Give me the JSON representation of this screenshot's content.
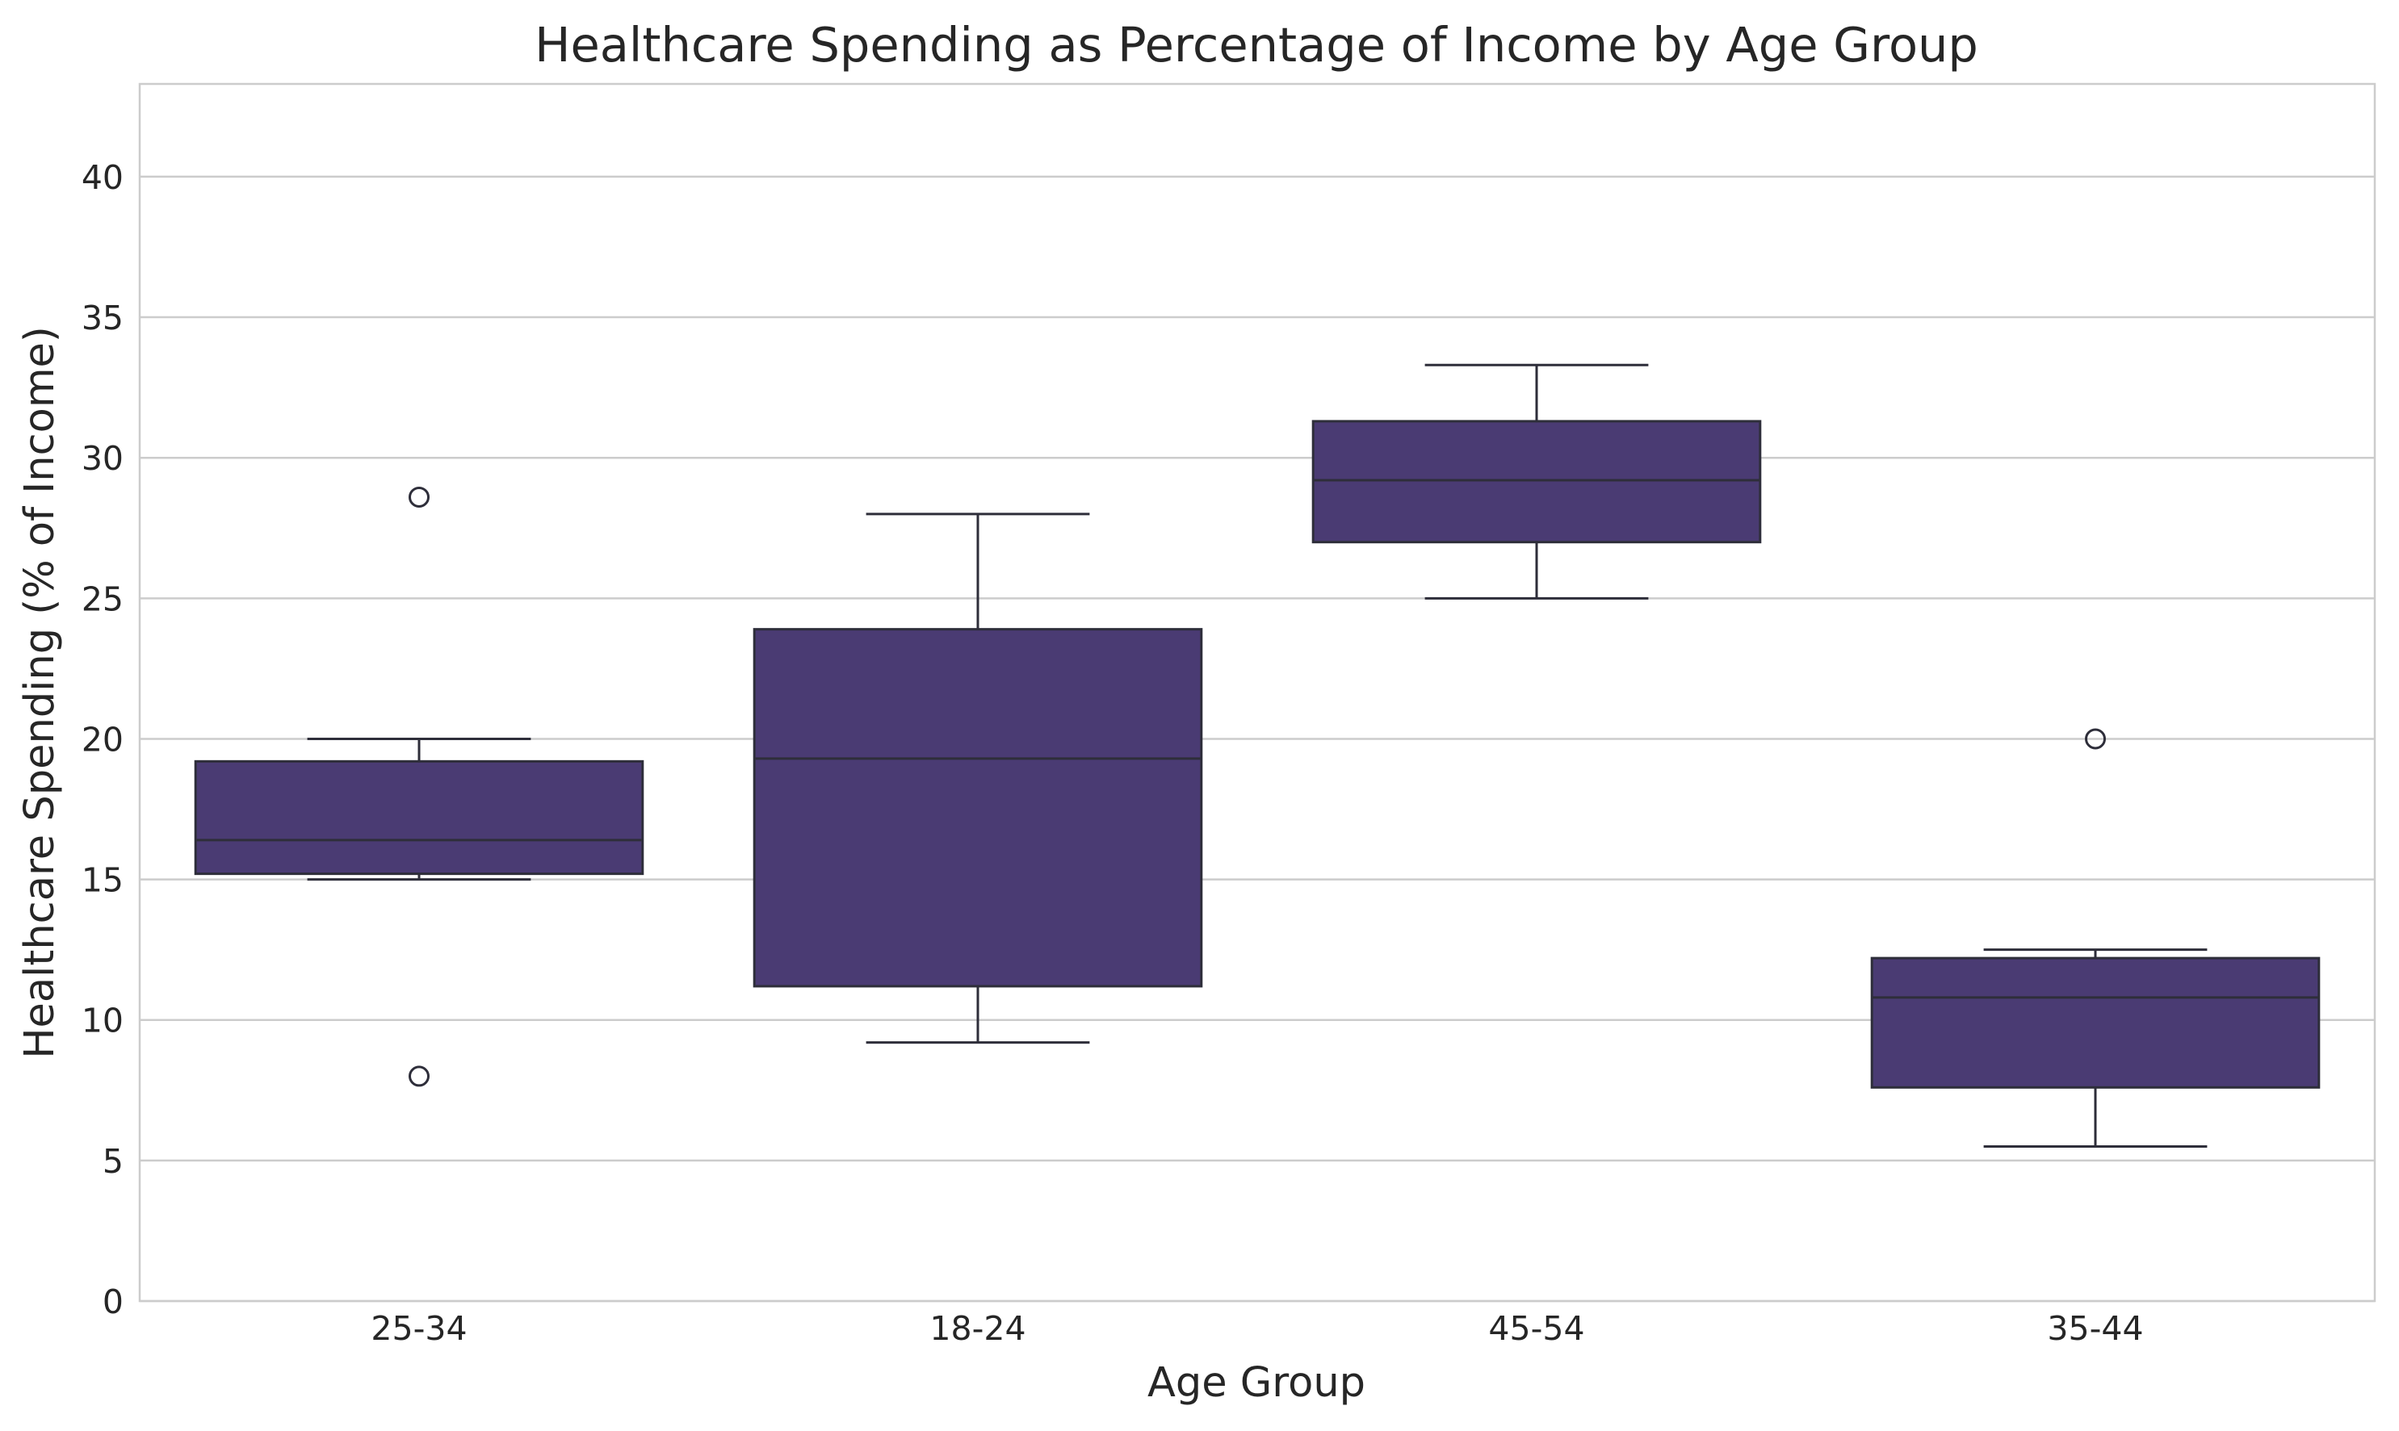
{
  "chart_data": {
    "type": "box",
    "title": "Healthcare Spending as Percentage of Income by Age Group",
    "xlabel": "Age Group",
    "ylabel": "Healthcare Spending (% of Income)",
    "ylim": [
      0,
      43.3
    ],
    "yticks": [
      0,
      5,
      10,
      15,
      20,
      25,
      30,
      35,
      40
    ],
    "grid": "horizontal",
    "colors": {
      "box_fill": "#4a3b73",
      "box_edge": "#2e2e3a",
      "grid": "#cccccc",
      "frame": "#cccccc"
    },
    "categories": [
      "25-34",
      "18-24",
      "45-54",
      "35-44"
    ],
    "boxes": [
      {
        "category": "25-34",
        "whisker_low": 15.0,
        "q1": 15.2,
        "median": 16.4,
        "q3": 19.2,
        "whisker_high": 20.0,
        "outliers": [
          28.6,
          8.0
        ]
      },
      {
        "category": "18-24",
        "whisker_low": 9.2,
        "q1": 11.2,
        "median": 19.3,
        "q3": 23.9,
        "whisker_high": 28.0,
        "outliers": []
      },
      {
        "category": "45-54",
        "whisker_low": 25.0,
        "q1": 27.0,
        "median": 29.2,
        "q3": 31.3,
        "whisker_high": 33.3,
        "outliers": []
      },
      {
        "category": "35-44",
        "whisker_low": 5.5,
        "q1": 7.6,
        "median": 10.8,
        "q3": 12.2,
        "whisker_high": 12.5,
        "outliers": [
          20.0
        ]
      }
    ]
  }
}
